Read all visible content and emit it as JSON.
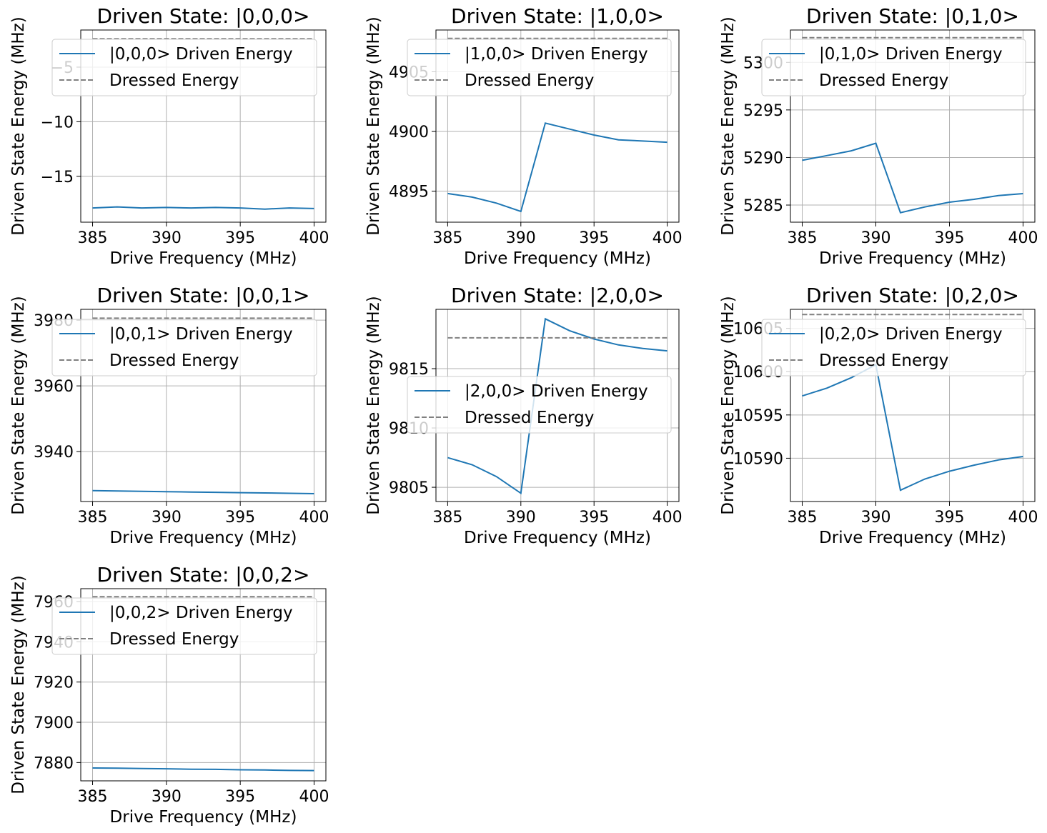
{
  "figure": {
    "xlabel": "Drive Frequency (MHz)",
    "ylabel": "Driven State Energy (MHz)",
    "driven_color": "#1f77b4",
    "dressed_color": "#808080",
    "dressed_label": "Dressed Energy"
  },
  "chart_data": [
    {
      "type": "line",
      "title": "Driven State: |0,0,0>",
      "xlabel": "Drive Frequency (MHz)",
      "ylabel": "Driven State Energy (MHz)",
      "x": [
        385,
        386.67,
        388.33,
        390,
        391.67,
        393.33,
        395,
        396.67,
        398.33,
        400
      ],
      "xlim": [
        384.2,
        400.8
      ],
      "ylim": [
        -19.2,
        -1.6
      ],
      "xticks": [
        385,
        390,
        395,
        400
      ],
      "yticks": [
        -15,
        -10,
        -5
      ],
      "ytick_labels": [
        "−15",
        "−10",
        "−5"
      ],
      "series": [
        {
          "name": "|0,0,0> Driven Energy",
          "values": [
            -17.9,
            -17.8,
            -17.9,
            -17.85,
            -17.9,
            -17.85,
            -17.9,
            -18.0,
            -17.9,
            -17.95
          ]
        },
        {
          "name": "Dressed Energy",
          "values": [
            -2.4,
            -2.4,
            -2.4,
            -2.4,
            -2.4,
            -2.4,
            -2.4,
            -2.4,
            -2.4,
            -2.4
          ],
          "style": "dashed"
        }
      ],
      "legend": "upper-center",
      "grid": true
    },
    {
      "type": "line",
      "title": "Driven State: |1,0,0>",
      "xlabel": "Drive Frequency (MHz)",
      "ylabel": "Driven State Energy (MHz)",
      "x": [
        385,
        386.67,
        388.33,
        390,
        391.67,
        393.33,
        395,
        396.67,
        398.33,
        400
      ],
      "xlim": [
        384.2,
        400.8
      ],
      "ylim": [
        4892.4,
        4908.5
      ],
      "xticks": [
        385,
        390,
        395,
        400
      ],
      "yticks": [
        4895,
        4900,
        4905
      ],
      "ytick_labels": [
        "4895",
        "4900",
        "4905"
      ],
      "series": [
        {
          "name": "|1,0,0> Driven Energy",
          "values": [
            4894.8,
            4894.5,
            4894.0,
            4893.3,
            4900.7,
            4900.2,
            4899.7,
            4899.3,
            4899.2,
            4899.1
          ]
        },
        {
          "name": "Dressed Energy",
          "values": [
            4907.8,
            4907.8,
            4907.8,
            4907.8,
            4907.8,
            4907.8,
            4907.8,
            4907.8,
            4907.8,
            4907.8
          ],
          "style": "dashed"
        }
      ],
      "legend": "upper-center",
      "grid": true
    },
    {
      "type": "line",
      "title": "Driven State: |0,1,0>",
      "xlabel": "Drive Frequency (MHz)",
      "ylabel": "Driven State Energy (MHz)",
      "x": [
        385,
        386.67,
        388.33,
        390,
        391.67,
        393.33,
        395,
        396.67,
        398.33,
        400
      ],
      "xlim": [
        384.2,
        400.8
      ],
      "ylim": [
        5283.2,
        5303.4
      ],
      "xticks": [
        385,
        390,
        395,
        400
      ],
      "yticks": [
        5285,
        5290,
        5295,
        5300
      ],
      "ytick_labels": [
        "5285",
        "5290",
        "5295",
        "5300"
      ],
      "series": [
        {
          "name": "|0,1,0> Driven Energy",
          "values": [
            5289.7,
            5290.2,
            5290.7,
            5291.5,
            5284.2,
            5284.8,
            5285.3,
            5285.6,
            5286.0,
            5286.2
          ]
        },
        {
          "name": "Dressed Energy",
          "values": [
            5302.6,
            5302.6,
            5302.6,
            5302.6,
            5302.6,
            5302.6,
            5302.6,
            5302.6,
            5302.6,
            5302.6
          ],
          "style": "dashed"
        }
      ],
      "legend": "upper-center",
      "grid": true
    },
    {
      "type": "line",
      "title": "Driven State: |0,0,1>",
      "xlabel": "Drive Frequency (MHz)",
      "ylabel": "Driven State Energy (MHz)",
      "x": [
        385,
        386.67,
        388.33,
        390,
        391.67,
        393.33,
        395,
        396.67,
        398.33,
        400
      ],
      "xlim": [
        384.2,
        400.8
      ],
      "ylim": [
        3924.8,
        3983.3
      ],
      "xticks": [
        385,
        390,
        395,
        400
      ],
      "yticks": [
        3940,
        3960,
        3980
      ],
      "ytick_labels": [
        "3940",
        "3960",
        "3980"
      ],
      "series": [
        {
          "name": "|0,0,1> Driven Energy",
          "values": [
            3928.1,
            3928.0,
            3927.9,
            3927.8,
            3927.7,
            3927.6,
            3927.5,
            3927.4,
            3927.3,
            3927.2
          ]
        },
        {
          "name": "Dressed Energy",
          "values": [
            3980.6,
            3980.6,
            3980.6,
            3980.6,
            3980.6,
            3980.6,
            3980.6,
            3980.6,
            3980.6,
            3980.6
          ],
          "style": "dashed"
        }
      ],
      "legend": "upper-center",
      "grid": true
    },
    {
      "type": "line",
      "title": "Driven State: |2,0,0>",
      "xlabel": "Drive Frequency (MHz)",
      "ylabel": "Driven State Energy (MHz)",
      "x": [
        385,
        386.67,
        388.33,
        390,
        391.67,
        393.33,
        395,
        396.67,
        398.33,
        400
      ],
      "xlim": [
        384.2,
        400.8
      ],
      "ylim": [
        9803.8,
        9820.0
      ],
      "xticks": [
        385,
        390,
        395,
        400
      ],
      "yticks": [
        9805,
        9810,
        9815
      ],
      "ytick_labels": [
        "9805",
        "9810",
        "9815"
      ],
      "series": [
        {
          "name": "|2,0,0> Driven Energy",
          "values": [
            9807.5,
            9806.9,
            9805.9,
            9804.5,
            9819.2,
            9818.2,
            9817.5,
            9817.0,
            9816.7,
            9816.5
          ]
        },
        {
          "name": "Dressed Energy",
          "values": [
            9817.6,
            9817.6,
            9817.6,
            9817.6,
            9817.6,
            9817.6,
            9817.6,
            9817.6,
            9817.6,
            9817.6
          ],
          "style": "dashed"
        }
      ],
      "legend": "center",
      "grid": true
    },
    {
      "type": "line",
      "title": "Driven State: |0,2,0>",
      "xlabel": "Drive Frequency (MHz)",
      "ylabel": "Driven State Energy (MHz)",
      "x": [
        385,
        386.67,
        388.33,
        390,
        391.67,
        393.33,
        395,
        396.67,
        398.33,
        400
      ],
      "xlim": [
        384.2,
        400.8
      ],
      "ylim": [
        10585.0,
        10607.2
      ],
      "xticks": [
        385,
        390,
        395,
        400
      ],
      "yticks": [
        10590,
        10595,
        10600,
        10605
      ],
      "ytick_labels": [
        "10590",
        "10595",
        "10600",
        "10605"
      ],
      "series": [
        {
          "name": "|0,2,0> Driven Energy",
          "values": [
            10597.2,
            10598.1,
            10599.3,
            10600.8,
            10586.3,
            10587.6,
            10588.5,
            10589.2,
            10589.8,
            10590.2
          ]
        },
        {
          "name": "Dressed Energy",
          "values": [
            10606.6,
            10606.6,
            10606.6,
            10606.6,
            10606.6,
            10606.6,
            10606.6,
            10606.6,
            10606.6,
            10606.6
          ],
          "style": "dashed"
        }
      ],
      "legend": "upper-center",
      "grid": true
    },
    {
      "type": "line",
      "title": "Driven State: |0,0,2>",
      "xlabel": "Drive Frequency (MHz)",
      "ylabel": "Driven State Energy (MHz)",
      "x": [
        385,
        386.67,
        388.33,
        390,
        391.67,
        393.33,
        395,
        396.67,
        398.33,
        400
      ],
      "xlim": [
        384.2,
        400.8
      ],
      "ylim": [
        7870.9,
        7966.4
      ],
      "xticks": [
        385,
        390,
        395,
        400
      ],
      "yticks": [
        7880,
        7900,
        7920,
        7940,
        7960
      ],
      "ytick_labels": [
        "7880",
        "7900",
        "7920",
        "7940",
        "7960"
      ],
      "series": [
        {
          "name": "|0,0,2> Driven Energy",
          "values": [
            7877.3,
            7877.2,
            7877.0,
            7876.9,
            7876.7,
            7876.6,
            7876.4,
            7876.3,
            7876.1,
            7876.0
          ]
        },
        {
          "name": "Dressed Energy",
          "values": [
            7962.4,
            7962.4,
            7962.4,
            7962.4,
            7962.4,
            7962.4,
            7962.4,
            7962.4,
            7962.4,
            7962.4
          ],
          "style": "dashed"
        }
      ],
      "legend": "upper-center",
      "grid": true
    }
  ]
}
